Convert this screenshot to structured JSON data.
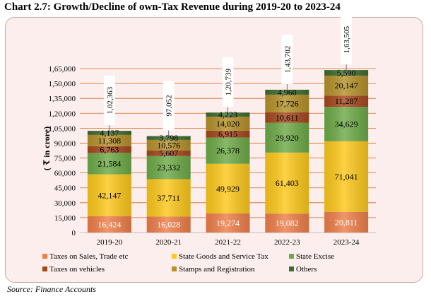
{
  "header": {
    "title": "Chart 2.7: Growth/Decline of own-Tax Revenue during 2019-20 to 2023-24",
    "source": "Source: Finance Accounts"
  },
  "chart_data": {
    "type": "bar",
    "stacked": true,
    "ylabel": "( ₹ in crore)",
    "xlabel": "",
    "ylim": [
      0,
      165000
    ],
    "yticks": [
      0,
      15000,
      30000,
      45000,
      60000,
      75000,
      90000,
      105000,
      120000,
      135000,
      150000,
      165000
    ],
    "ytick_labels": [
      "0",
      "15,000",
      "30,000",
      "45,000",
      "60,000",
      "75,000",
      "90,000",
      "1,05,000",
      "1,20,000",
      "1,35,000",
      "1,50,000",
      "1,65,000"
    ],
    "grid": true,
    "legend_position": "bottom",
    "categories": [
      "2019-20",
      "2020-21",
      "2021-22",
      "2022-23",
      "2023-24"
    ],
    "series": [
      {
        "name": "Taxes on Sales, Trade etc",
        "color": "#ee7f4a",
        "values": [
          16424,
          16028,
          19274,
          19082,
          20811
        ],
        "labels": [
          "16,424",
          "16,028",
          "19,274",
          "19,082",
          "20,811"
        ]
      },
      {
        "name": "State Goods and Service Tax",
        "color": "#fdc81c",
        "values": [
          42147,
          37711,
          49929,
          61403,
          71041
        ],
        "labels": [
          "42,147",
          "37,711",
          "49,929",
          "61,403",
          "71,041"
        ]
      },
      {
        "name": "State Excise",
        "color": "#6eaa48",
        "values": [
          21584,
          23332,
          26378,
          29920,
          34629
        ],
        "labels": [
          "21,584",
          "23,332",
          "26,378",
          "29,920",
          "34,629"
        ]
      },
      {
        "name": "Taxes on vehicles",
        "color": "#a5481d",
        "values": [
          6763,
          5607,
          6915,
          10611,
          11287
        ],
        "labels": [
          "6,763",
          "5,607",
          "6,915",
          "10,611",
          "11,287"
        ]
      },
      {
        "name": "Stamps and Registration",
        "color": "#b5912a",
        "values": [
          11308,
          10576,
          14020,
          17726,
          20147
        ],
        "labels": [
          "11,308",
          "10,576",
          "14,020",
          "17,726",
          "20,147"
        ]
      },
      {
        "name": "Others",
        "color": "#3f6c2f",
        "values": [
          4137,
          3798,
          4223,
          4960,
          5590
        ],
        "labels": [
          "4,137",
          "3,798",
          "4,223",
          "4,960",
          "5,590"
        ]
      }
    ],
    "totals": [
      102363,
      97052,
      120739,
      143702,
      163505
    ],
    "total_labels": [
      "1,02,363",
      "97,052",
      "1,20,739",
      "1,43,702",
      "1,63,505"
    ]
  }
}
